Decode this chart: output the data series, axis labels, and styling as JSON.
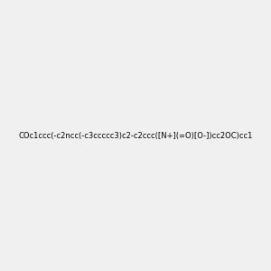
{
  "smiles": "COc1ccc(-c2ncc(-c3ccccc3)c2-c2ccc([N+](=O)[O-])cc2OC)cc1",
  "title": "",
  "bg_color": "#f0f0f0",
  "bond_color": "#000000",
  "n_color": "#0000ff",
  "o_color": "#ff0000",
  "nh_color": "#008080",
  "fig_width": 3.0,
  "fig_height": 3.0,
  "dpi": 100
}
